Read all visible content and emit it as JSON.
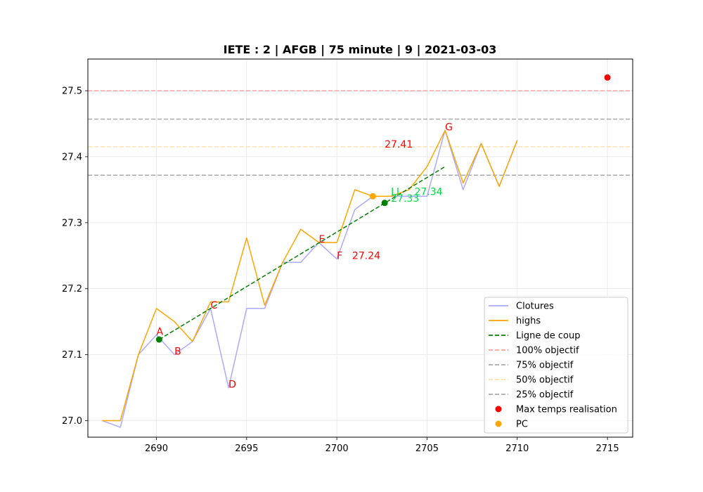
{
  "chart_data": {
    "type": "line",
    "title": "IETE : 2 | AFGB | 75 minute | 9 | 2021-03-03",
    "xlim": [
      2686.2,
      2716.4
    ],
    "ylim": [
      26.975,
      27.548
    ],
    "xticks": [
      2690,
      2695,
      2700,
      2705,
      2710,
      2715
    ],
    "yticks": [
      27.0,
      27.1,
      27.2,
      27.3,
      27.4,
      27.5
    ],
    "grid": true,
    "legend_position": "lower-right",
    "series": [
      {
        "name": "Clotures",
        "kind": "line",
        "color": "#aaaaff",
        "x": [
          2687,
          2688,
          2689,
          2690,
          2691,
          2692,
          2693,
          2694,
          2695,
          2696,
          2697,
          2698,
          2699,
          2700,
          2701,
          2702,
          2703,
          2704,
          2705,
          2706,
          2707,
          2708,
          2709,
          2710
        ],
        "y": [
          27.0,
          26.99,
          27.1,
          27.13,
          27.1,
          27.12,
          27.17,
          27.05,
          27.17,
          27.17,
          27.24,
          27.24,
          27.27,
          27.245,
          27.32,
          27.34,
          27.34,
          27.34,
          27.34,
          27.44,
          27.35,
          27.42,
          27.355,
          27.425
        ]
      },
      {
        "name": "highs",
        "kind": "line",
        "color": "#ffa500",
        "x": [
          2687,
          2688,
          2689,
          2690,
          2691,
          2692,
          2693,
          2694,
          2695,
          2696,
          2697,
          2698,
          2699,
          2700,
          2701,
          2702,
          2703,
          2704,
          2705,
          2706,
          2707,
          2708,
          2709,
          2710
        ],
        "y": [
          27.0,
          27.0,
          27.1,
          27.17,
          27.15,
          27.12,
          27.18,
          27.18,
          27.277,
          27.175,
          27.24,
          27.29,
          27.27,
          27.27,
          27.35,
          27.34,
          27.34,
          27.35,
          27.385,
          27.44,
          27.36,
          27.42,
          27.355,
          27.425
        ]
      },
      {
        "name": "Ligne de coup",
        "kind": "dashed-line",
        "color": "#008000",
        "x": [
          2690.15,
          2706.0
        ],
        "y": [
          27.123,
          27.385
        ]
      },
      {
        "name": "100% objectif",
        "kind": "hline",
        "color": "#ffa0a0",
        "y": 27.5
      },
      {
        "name": "75% objectif",
        "kind": "hline",
        "color": "#aaaaaa",
        "y": 27.457
      },
      {
        "name": "50% objectif",
        "kind": "hline",
        "color": "#ffe0b0",
        "y": 27.415
      },
      {
        "name": "25% objectif",
        "kind": "hline",
        "color": "#aaaaaa",
        "y": 27.372
      },
      {
        "name": "Max temps realisation",
        "kind": "scatter",
        "color": "#ff0000",
        "points": [
          {
            "x": 2715.0,
            "y": 27.52
          }
        ]
      },
      {
        "name": "PC",
        "kind": "scatter",
        "color": "#ffa500",
        "points": [
          {
            "x": 2702.0,
            "y": 27.34
          }
        ]
      }
    ],
    "extra_points": [
      {
        "x": 2690.15,
        "y": 27.123,
        "color": "#008000"
      },
      {
        "x": 2702.65,
        "y": 27.33,
        "color": "#008000"
      }
    ],
    "annotations": [
      {
        "text": "A",
        "x": 2690.0,
        "y": 27.13,
        "color": "#ff0000"
      },
      {
        "text": "B",
        "x": 2691.0,
        "y": 27.1,
        "color": "#ff0000"
      },
      {
        "text": "C",
        "x": 2693.0,
        "y": 27.17,
        "color": "#ff0000"
      },
      {
        "text": "D",
        "x": 2694.0,
        "y": 27.05,
        "color": "#ff0000"
      },
      {
        "text": "E",
        "x": 2699.0,
        "y": 27.27,
        "color": "#ff0000"
      },
      {
        "text": "F",
        "x": 2700.0,
        "y": 27.245,
        "color": "#ff0000"
      },
      {
        "text": "G",
        "x": 2706.0,
        "y": 27.44,
        "color": "#ff0000"
      },
      {
        "text": "27.41",
        "x": 2702.65,
        "y": 27.414,
        "color": "#ff0000"
      },
      {
        "text": "27.24",
        "x": 2700.85,
        "y": 27.245,
        "color": "#ff0000"
      },
      {
        "text": "27.34",
        "x": 2704.3,
        "y": 27.342,
        "color": "#00dd44"
      },
      {
        "text": "27.33",
        "x": 2703.0,
        "y": 27.332,
        "color": "#00dd44"
      },
      {
        "text": "LL",
        "x": 2703.0,
        "y": 27.342,
        "color": "#00dd44"
      }
    ]
  }
}
